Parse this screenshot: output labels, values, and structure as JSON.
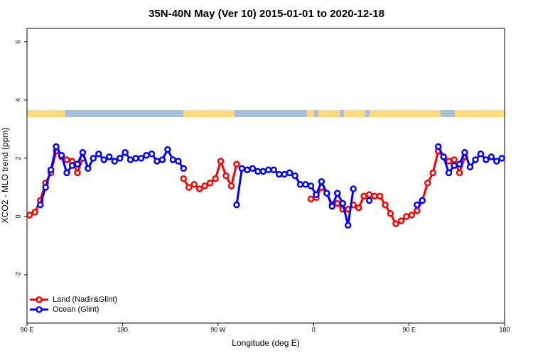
{
  "chart_data": {
    "type": "line",
    "title": "35N-40N May (Ver 10)   2015-01-01 to 2020-12-18",
    "x_label": "Longitude (deg E)",
    "y_label": "XCO2 - MLO trend (ppm)",
    "x": [
      92.5,
      97.5,
      102.5,
      107.5,
      112.5,
      117.5,
      122.5,
      127.5,
      132.5,
      137.5,
      142.5,
      147.5,
      152.5,
      157.5,
      162.5,
      167.5,
      172.5,
      177.5,
      182.5,
      187.5,
      192.5,
      197.5,
      202.5,
      207.5,
      212.5,
      217.5,
      222.5,
      227.5,
      232.5,
      237.5,
      242.5,
      247.5,
      252.5,
      257.5,
      262.5,
      267.5,
      272.5,
      277.5,
      282.5,
      287.5,
      292.5,
      297.5,
      302.5,
      307.5,
      312.5,
      317.5,
      322.5,
      327.5,
      332.5,
      337.5,
      342.5,
      347.5,
      352.5,
      357.5,
      362.5,
      367.5,
      372.5,
      377.5,
      382.5,
      387.5,
      392.5,
      397.5,
      402.5,
      407.5,
      412.5,
      417.5,
      422.5,
      427.5,
      432.5,
      437.5,
      442.5,
      447.5,
      452.5,
      457.5,
      462.5,
      467.5,
      472.5,
      477.5,
      482.5,
      487.5,
      492.5,
      497.5,
      502.5,
      507.5,
      512.5,
      517.5,
      522.5,
      527.5,
      532.5,
      537.5
    ],
    "xlim": [
      90,
      540
    ],
    "xticks": [
      {
        "value": 90,
        "label": "90 E"
      },
      180,
      {
        "value": 270,
        "label": "90 W"
      },
      {
        "value": 360,
        "label": "0"
      },
      {
        "value": 450,
        "label": "90 E"
      },
      {
        "value": 540,
        "label": "180"
      }
    ],
    "ylim": [
      -3.66,
      6.46
    ],
    "yticks": [
      -2,
      0,
      2,
      4,
      6
    ],
    "legend": "bottom-left",
    "series": [
      {
        "name": "Land (Nadir&Glint)",
        "color": "#ff0000",
        "values": [
          0.05,
          0.15,
          0.55,
          1.15,
          1.5,
          2.25,
          2.05,
          1.95,
          1.9,
          1.5,
          2.0,
          null,
          null,
          null,
          null,
          null,
          null,
          null,
          null,
          null,
          null,
          null,
          null,
          null,
          null,
          null,
          null,
          null,
          null,
          1.3,
          1.0,
          1.1,
          0.95,
          1.05,
          1.15,
          1.3,
          1.9,
          1.4,
          1.05,
          1.8,
          null,
          null,
          null,
          null,
          null,
          null,
          null,
          null,
          null,
          null,
          null,
          null,
          null,
          0.6,
          0.65,
          1.0,
          0.8,
          0.4,
          0.45,
          0.25,
          0.25,
          0.4,
          0.3,
          0.7,
          0.75,
          0.7,
          0.7,
          0.4,
          0.1,
          -0.25,
          -0.15,
          0.0,
          0.05,
          0.2,
          0.55,
          1.15,
          1.5,
          2.25,
          2.05,
          1.9,
          1.95,
          1.5,
          2.05,
          null,
          null,
          null,
          null,
          null,
          null,
          null
        ]
      },
      {
        "name": "Ocean (Glint)",
        "color": "#0000ff",
        "values": [
          null,
          null,
          0.4,
          1.0,
          1.6,
          2.4,
          2.1,
          1.5,
          1.75,
          1.8,
          2.2,
          1.65,
          2.0,
          2.15,
          1.95,
          2.05,
          1.9,
          2.0,
          2.2,
          1.95,
          2.0,
          2.0,
          2.1,
          2.15,
          1.9,
          1.95,
          2.3,
          1.95,
          1.9,
          1.65,
          null,
          null,
          null,
          null,
          null,
          null,
          null,
          null,
          null,
          0.4,
          1.65,
          1.6,
          1.65,
          1.55,
          1.55,
          1.6,
          1.6,
          1.45,
          1.45,
          1.5,
          1.4,
          1.1,
          1.1,
          1.05,
          0.75,
          1.2,
          0.8,
          0.35,
          0.8,
          0.45,
          -0.3,
          0.95,
          null,
          null,
          0.55,
          null,
          null,
          null,
          null,
          null,
          null,
          null,
          null,
          0.4,
          0.55,
          null,
          null,
          2.4,
          2.05,
          1.5,
          1.75,
          1.8,
          2.2,
          1.7,
          1.95,
          2.15,
          1.95,
          2.05,
          1.9,
          2.0
        ]
      }
    ]
  }
}
